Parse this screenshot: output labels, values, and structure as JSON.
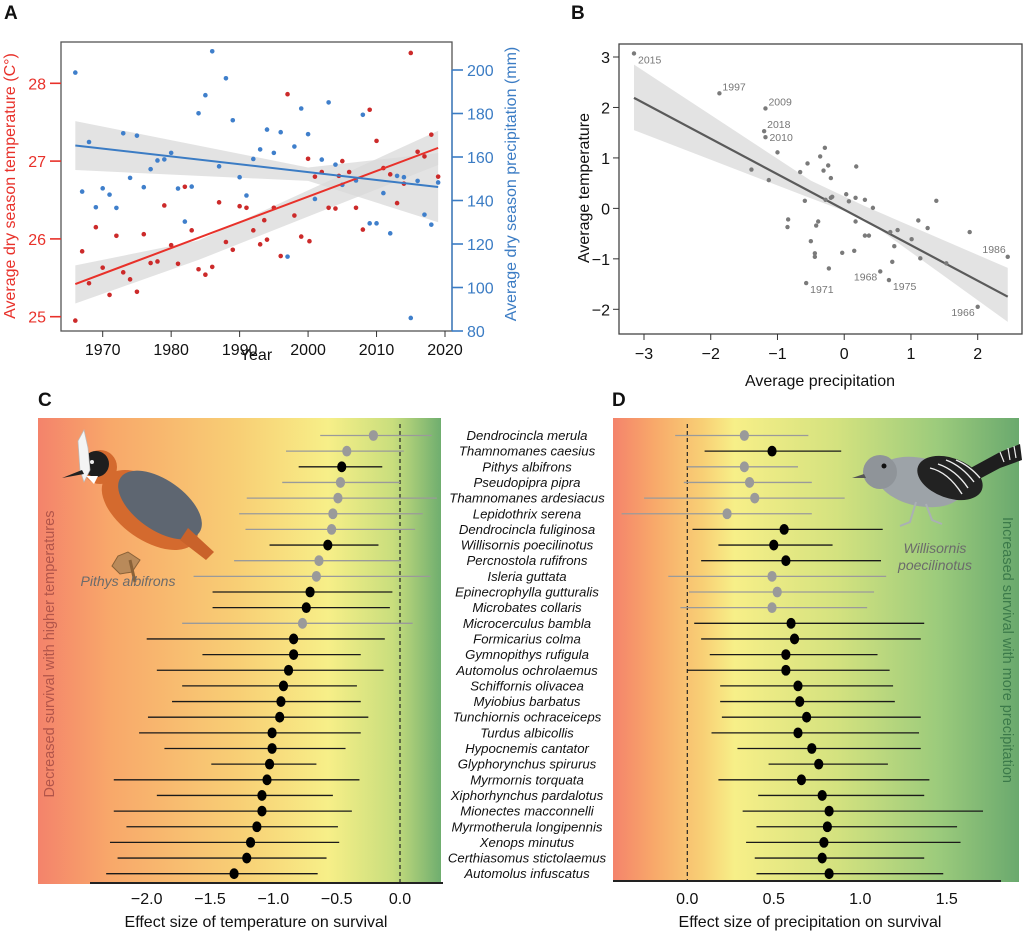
{
  "panels": {
    "A": {
      "letter": "A"
    },
    "B": {
      "letter": "B"
    },
    "C": {
      "letter": "C"
    },
    "D": {
      "letter": "D"
    }
  },
  "colors": {
    "temperature": "#e8312a",
    "temperature_points": "#cc2a2a",
    "precipitation": "#3b7cc4",
    "precipitation_points": "#3f7fcb",
    "ci_band": "#d9d9d9",
    "panelB_points": "#7a7a7a",
    "panelB_line": "#5a5a5a",
    "significant": "#000000",
    "nonsignificant": "#9a9a9a",
    "gradient_red": "#f4836b",
    "gradient_orange": "#f8b26a",
    "gradient_yellow": "#f7ef88",
    "gradient_green": "#6fae6f"
  },
  "chart_data": [
    {
      "id": "A",
      "type": "scatter",
      "title": "",
      "xlabel": "Year",
      "ylabel": "Average dry season temperature (C°)",
      "ylabel_right": "Average dry season precipitation (mm)",
      "xlim": [
        1964,
        2021
      ],
      "ylim": [
        24.85,
        28.55
      ],
      "ylim_right": [
        80,
        211
      ],
      "xticks": [
        "1970",
        "1980",
        "1990",
        "2000",
        "2010",
        "2020"
      ],
      "xtick_values": [
        1970,
        1980,
        1990,
        2000,
        2010,
        2020
      ],
      "yticks": [
        "25",
        "26",
        "27",
        "28"
      ],
      "ytick_values": [
        25,
        26,
        27,
        28
      ],
      "yticks_right": [
        "80",
        "100",
        "120",
        "140",
        "160",
        "180",
        "200"
      ],
      "ytick_values_right": [
        80,
        100,
        120,
        140,
        160,
        180,
        200
      ],
      "grid": false,
      "series": [
        {
          "name": "Temperature",
          "axis": "left",
          "x": [
            1966,
            1967,
            1968,
            1969,
            1970,
            1971,
            1972,
            1973,
            1974,
            1975,
            1976,
            1977,
            1978,
            1979,
            1980,
            1981,
            1982,
            1983,
            1984,
            1985,
            1986,
            1987,
            1988,
            1989,
            1990,
            1991,
            1992,
            1993,
            1993.6,
            1994,
            1995,
            1996,
            1997,
            1998,
            1999,
            2000,
            2000.2,
            2001,
            2002,
            2003,
            2004,
            2004.5,
            2005,
            2006,
            2007,
            2008,
            2009,
            2010,
            2011,
            2012,
            2013,
            2014,
            2015,
            2016,
            2017,
            2018,
            2019
          ],
          "y": [
            24.95,
            25.84,
            25.43,
            26.15,
            25.63,
            25.28,
            26.04,
            25.57,
            25.48,
            25.32,
            26.06,
            25.69,
            25.71,
            26.43,
            25.92,
            25.68,
            26.67,
            26.11,
            25.61,
            25.54,
            25.64,
            26.47,
            25.96,
            25.86,
            26.42,
            26.4,
            26.11,
            25.93,
            26.24,
            25.99,
            26.4,
            25.78,
            27.86,
            26.3,
            26.03,
            27.03,
            25.97,
            26.8,
            26.86,
            26.4,
            26.39,
            26.81,
            27.0,
            26.86,
            26.4,
            26.12,
            27.66,
            27.26,
            26.91,
            26.83,
            26.46,
            26.71,
            28.39,
            27.12,
            27.06,
            27.34,
            26.8
          ],
          "trend": {
            "x": [
              1966,
              2019
            ],
            "y": [
              25.42,
              27.17
            ]
          },
          "ci": {
            "x": [
              1966,
              1984,
              2019
            ],
            "upper": [
              25.66,
              25.98,
              27.39
            ],
            "lower": [
              25.17,
              25.73,
              26.95
            ]
          }
        },
        {
          "name": "Precipitation",
          "axis": "right",
          "x": [
            1966,
            1967,
            1968,
            1969,
            1970,
            1971,
            1972,
            1973,
            1974,
            1975,
            1976,
            1977,
            1978,
            1979,
            1980,
            1981,
            1982,
            1983,
            1984,
            1985,
            1986,
            1987,
            1988,
            1989,
            1990,
            1991,
            1992,
            1993,
            1994,
            1995,
            1996,
            1997,
            1998,
            1999,
            2000,
            2001,
            2002,
            2003,
            2004,
            2005,
            2007,
            2008,
            2009,
            2010,
            2011,
            2012,
            2013,
            2014,
            2015,
            2016,
            2017,
            2018,
            2019
          ],
          "y": [
            198.8,
            144.1,
            166.9,
            136.9,
            145.6,
            142.7,
            136.6,
            170.9,
            150.4,
            169.8,
            146.1,
            154.4,
            158.4,
            158.9,
            161.9,
            145.5,
            130.3,
            146.4,
            180.1,
            188.4,
            208.6,
            155.7,
            196.2,
            176.9,
            150.7,
            142.3,
            159.1,
            163.5,
            172.6,
            161.9,
            171.4,
            114.2,
            164.8,
            182.3,
            170.5,
            140.7,
            158.8,
            185.1,
            156.5,
            147.2,
            149.2,
            179.4,
            129.5,
            129.5,
            143.4,
            124.9,
            151.3,
            150.7,
            86.0,
            149.0,
            133.5,
            128.9,
            148.3
          ],
          "trend": {
            "x": [
              1966,
              2019
            ],
            "y": [
              165.3,
              146.2
            ]
          },
          "ci": {
            "x": [
              1966,
              2000,
              2019
            ],
            "upper": [
              176.5,
              155.2,
              161.8
            ],
            "lower": [
              154.0,
              149.0,
              130.0
            ]
          }
        }
      ]
    },
    {
      "id": "B",
      "type": "scatter",
      "title": "",
      "xlabel": "Average precipitation",
      "ylabel": "Average temperature",
      "xlim": [
        -3.38,
        2.68
      ],
      "ylim": [
        -2.5,
        3.25
      ],
      "xticks": [
        "−3",
        "−2",
        "−1",
        "0",
        "1",
        "2"
      ],
      "xtick_values": [
        -3,
        -2,
        -1,
        0,
        1,
        2
      ],
      "yticks": [
        "−2",
        "−1",
        "0",
        "1",
        "2",
        "3"
      ],
      "ytick_values": [
        -2,
        -1,
        0,
        1,
        2,
        3
      ],
      "grid": false,
      "x": [
        -3.15,
        -1.87,
        -1.18,
        -1.2,
        -1.18,
        -1.0,
        -1.39,
        -1.13,
        -0.66,
        -0.55,
        -0.59,
        -0.36,
        -0.29,
        -0.24,
        -0.31,
        -0.2,
        -0.28,
        -0.18,
        -0.2,
        0.03,
        0.07,
        0.17,
        0.18,
        0.31,
        0.43,
        0.17,
        -0.84,
        -0.85,
        -0.39,
        -0.42,
        -0.5,
        -0.44,
        -0.44,
        -0.03,
        0.15,
        -0.23,
        -0.57,
        0.31,
        0.37,
        0.69,
        0.8,
        0.75,
        0.72,
        0.54,
        0.67,
        1.01,
        1.11,
        1.14,
        1.25,
        1.38,
        1.53,
        1.88,
        2.0,
        2.45
      ],
      "y": [
        3.07,
        2.28,
        1.98,
        1.53,
        1.41,
        1.11,
        0.77,
        0.56,
        0.72,
        0.89,
        0.15,
        1.03,
        1.2,
        0.85,
        0.75,
        0.6,
        0.17,
        0.23,
        0.21,
        0.28,
        0.14,
        0.21,
        0.83,
        0.17,
        0.01,
        -0.26,
        -0.22,
        -0.37,
        -0.26,
        -0.34,
        -0.65,
        -0.89,
        -0.96,
        -0.88,
        -0.84,
        -1.19,
        -1.48,
        -0.54,
        -0.54,
        -0.47,
        -0.43,
        -0.75,
        -1.06,
        -1.25,
        -1.42,
        -0.61,
        -0.24,
        -0.99,
        -0.39,
        0.15,
        -1.09,
        -0.47,
        -1.95,
        -0.96
      ],
      "annotations": [
        {
          "label": "2015",
          "x": -3.15,
          "y": 3.07,
          "pos": "below-right"
        },
        {
          "label": "1997",
          "x": -1.87,
          "y": 2.28,
          "pos": "above-right"
        },
        {
          "label": "2009",
          "x": -1.18,
          "y": 1.98,
          "pos": "above-right"
        },
        {
          "label": "2018",
          "x": -1.2,
          "y": 1.53,
          "pos": "above-right"
        },
        {
          "label": "2010",
          "x": -1.18,
          "y": 1.41,
          "pos": "right"
        },
        {
          "label": "1971",
          "x": -0.57,
          "y": -1.48,
          "pos": "below-right"
        },
        {
          "label": "1968",
          "x": 0.54,
          "y": -1.25,
          "pos": "below-left"
        },
        {
          "label": "1975",
          "x": 0.67,
          "y": -1.42,
          "pos": "below-right"
        },
        {
          "label": "1966",
          "x": 2.0,
          "y": -1.95,
          "pos": "below-left"
        },
        {
          "label": "1986",
          "x": 2.45,
          "y": -0.96,
          "pos": "above-left"
        }
      ],
      "trend": {
        "x": [
          -3.15,
          2.45
        ],
        "y": [
          2.19,
          -1.75
        ]
      },
      "ci": {
        "x": [
          -3.15,
          -0.5,
          0.3,
          2.45
        ],
        "upper": [
          2.85,
          0.55,
          0.05,
          -1.18
        ],
        "lower": [
          1.55,
          0.2,
          -0.2,
          -2.25
        ]
      }
    },
    {
      "id": "C",
      "type": "scatter",
      "subtype": "forest",
      "title": "",
      "xlabel": "Effect size of temperature on survival",
      "ylabel": "Decreased survival with higher temperatures",
      "xlim": [
        -2.87,
        0.23
      ],
      "xticks": [
        "−2.0",
        "−1.5",
        "−1.0",
        "−0.5",
        "0.0"
      ],
      "xtick_values": [
        -2.0,
        -1.5,
        -1.0,
        -0.5,
        0.0
      ],
      "reference_line": 0.0,
      "grid": false,
      "bird_caption": "Pithys albifrons",
      "estimate": [
        -0.21,
        -0.42,
        -0.46,
        -0.47,
        -0.49,
        -0.53,
        -0.54,
        -0.57,
        -0.64,
        -0.66,
        -0.71,
        -0.74,
        -0.77,
        -0.84,
        -0.84,
        -0.88,
        -0.92,
        -0.94,
        -0.95,
        -1.01,
        -1.01,
        -1.03,
        -1.05,
        -1.09,
        -1.09,
        -1.13,
        -1.18,
        -1.21,
        -1.31
      ],
      "lower": [
        -0.63,
        -0.9,
        -0.8,
        -0.93,
        -1.21,
        -1.27,
        -1.22,
        -1.03,
        -1.31,
        -1.63,
        -1.48,
        -1.48,
        -1.72,
        -2.0,
        -1.56,
        -1.92,
        -1.72,
        -1.8,
        -1.99,
        -2.06,
        -1.86,
        -1.49,
        -2.26,
        -1.92,
        -2.26,
        -2.16,
        -2.29,
        -2.23,
        -2.32
      ],
      "upper": [
        0.25,
        0.03,
        -0.14,
        0.0,
        0.29,
        0.18,
        0.12,
        -0.17,
        0.01,
        0.24,
        -0.06,
        -0.08,
        0.1,
        -0.12,
        -0.31,
        -0.13,
        -0.34,
        -0.31,
        -0.25,
        -0.31,
        -0.43,
        -0.66,
        -0.32,
        -0.53,
        -0.38,
        -0.49,
        -0.48,
        -0.58,
        -0.65
      ],
      "significant": [
        false,
        false,
        true,
        false,
        false,
        false,
        false,
        true,
        false,
        false,
        true,
        true,
        false,
        true,
        true,
        true,
        true,
        true,
        true,
        true,
        true,
        true,
        true,
        true,
        true,
        true,
        true,
        true,
        true
      ]
    },
    {
      "id": "D",
      "type": "scatter",
      "subtype": "forest",
      "title": "",
      "xlabel": "Effect size of precipitation on survival",
      "ylabel": "Increased survival with more precipitation",
      "xlim": [
        -0.43,
        1.93
      ],
      "xticks": [
        "0.0",
        "0.5",
        "1.0",
        "1.5"
      ],
      "xtick_values": [
        0.0,
        0.5,
        1.0,
        1.5
      ],
      "reference_line": 0.0,
      "grid": false,
      "bird_caption_line1": "Willisornis",
      "bird_caption_line2": "poecilinotus",
      "estimate": [
        0.33,
        0.49,
        0.33,
        0.36,
        0.39,
        0.23,
        0.56,
        0.5,
        0.57,
        0.49,
        0.52,
        0.49,
        0.6,
        0.62,
        0.57,
        0.57,
        0.64,
        0.65,
        0.69,
        0.64,
        0.72,
        0.76,
        0.66,
        0.78,
        0.82,
        0.81,
        0.79,
        0.78,
        0.82
      ],
      "lower": [
        -0.07,
        0.1,
        0.0,
        -0.02,
        -0.25,
        -0.38,
        0.03,
        0.18,
        0.08,
        -0.11,
        0.01,
        -0.04,
        0.04,
        0.08,
        0.13,
        0.0,
        0.19,
        0.19,
        0.2,
        0.14,
        0.29,
        0.47,
        0.18,
        0.41,
        0.32,
        0.4,
        0.34,
        0.39,
        0.4
      ],
      "upper": [
        0.7,
        0.89,
        0.64,
        0.72,
        0.91,
        0.72,
        1.13,
        0.84,
        1.12,
        1.15,
        1.08,
        1.04,
        1.37,
        1.35,
        1.1,
        1.17,
        1.19,
        1.2,
        1.35,
        1.34,
        1.35,
        1.16,
        1.4,
        1.37,
        1.71,
        1.56,
        1.58,
        1.37,
        1.48
      ],
      "significant": [
        false,
        true,
        false,
        false,
        false,
        false,
        true,
        true,
        true,
        false,
        false,
        false,
        true,
        true,
        true,
        true,
        true,
        true,
        true,
        true,
        true,
        true,
        true,
        true,
        true,
        true,
        true,
        true,
        true
      ]
    }
  ],
  "species": [
    "Dendrocincla merula",
    "Thamnomanes caesius",
    "Pithys albifrons",
    "Pseudopipra pipra",
    "Thamnomanes ardesiacus",
    "Lepidothrix serena",
    "Dendrocincla fuliginosa",
    "Willisornis poecilinotus",
    "Percnostola rufifrons",
    "Isleria guttata",
    "Epinecrophylla gutturalis",
    "Microbates collaris",
    "Microcerculus bambla",
    "Formicarius colma",
    "Gymnopithys rufigula",
    "Automolus ochrolaemus",
    "Schiffornis olivacea",
    "Myiobius barbatus",
    "Tunchiornis ochraceiceps",
    "Turdus albicollis",
    "Hypocnemis cantator",
    "Glyphorynchus spirurus",
    "Myrmornis torquata",
    "Xiphorhynchus pardalotus",
    "Mionectes macconnelli",
    "Myrmotherula longipennis",
    "Xenops minutus",
    "Certhiasomus stictolaemus",
    "Automolus infuscatus"
  ]
}
